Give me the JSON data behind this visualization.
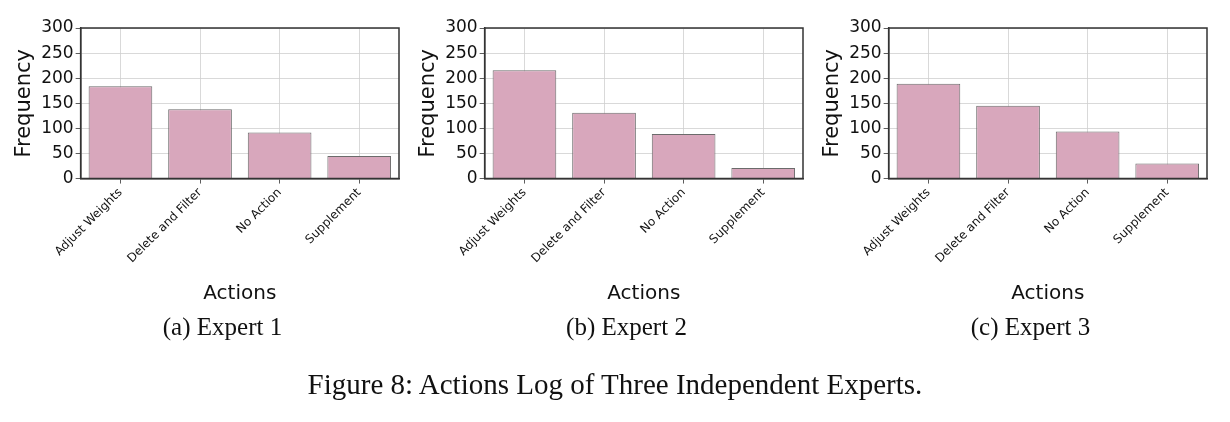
{
  "chart_data": [
    {
      "type": "bar",
      "title": "(a) Expert 1",
      "xlabel": "Actions",
      "ylabel": "Frequency",
      "categories": [
        "Adjust Weights",
        "Delete and Filter",
        "No Action",
        "Supplement"
      ],
      "values": [
        184,
        138,
        92,
        45
      ],
      "color": "#d8a7bc",
      "ylim": [
        0,
        300
      ],
      "yticks": [
        0,
        50,
        100,
        150,
        200,
        250,
        300
      ],
      "grid": true,
      "legend": false
    },
    {
      "type": "bar",
      "title": "(b) Expert 2",
      "xlabel": "Actions",
      "ylabel": "Frequency",
      "categories": [
        "Adjust Weights",
        "Delete and Filter",
        "No Action",
        "Supplement"
      ],
      "values": [
        216,
        131,
        89,
        21
      ],
      "color": "#d8a7bc",
      "ylim": [
        0,
        300
      ],
      "yticks": [
        0,
        50,
        100,
        150,
        200,
        250,
        300
      ],
      "grid": true,
      "legend": false
    },
    {
      "type": "bar",
      "title": "(c) Expert 3",
      "xlabel": "Actions",
      "ylabel": "Frequency",
      "categories": [
        "Adjust Weights",
        "Delete and Filter",
        "No Action",
        "Supplement"
      ],
      "values": [
        189,
        145,
        94,
        30
      ],
      "color": "#d8a7bc",
      "ylim": [
        0,
        300
      ],
      "yticks": [
        0,
        50,
        100,
        150,
        200,
        250,
        300
      ],
      "grid": true,
      "legend": false
    },
    {
      "type": "other",
      "title": "Figure 8: Actions Log of Three Independent Experts."
    }
  ]
}
